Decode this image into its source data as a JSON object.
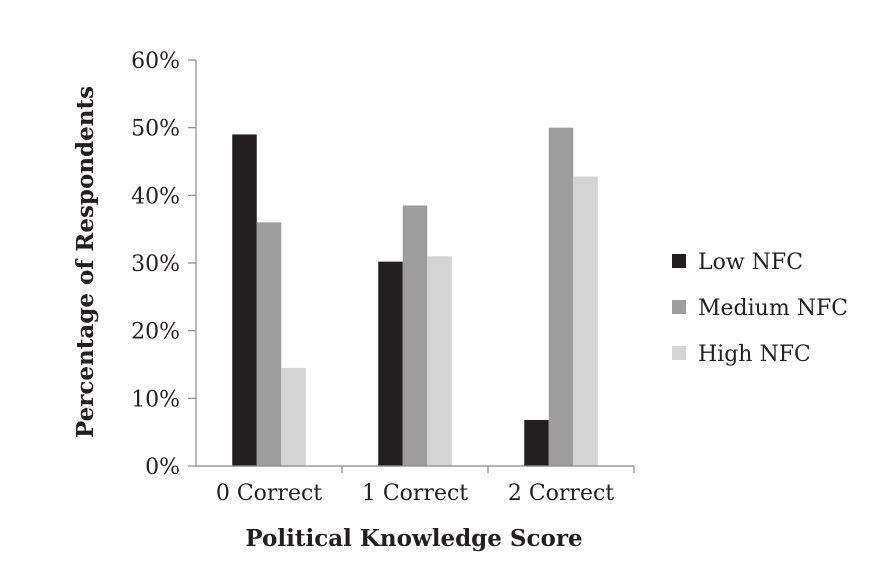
{
  "chart_data": {
    "type": "bar",
    "title": "",
    "xlabel": "Political Knowledge Score",
    "ylabel": "Percentage of Respondents",
    "categories": [
      "0 Correct",
      "1 Correct",
      "2 Correct"
    ],
    "series": [
      {
        "name": "Low NFC",
        "color": "#231f20",
        "values": [
          49,
          30.2,
          6.8
        ]
      },
      {
        "name": "Medium NFC",
        "color": "#9d9d9d",
        "values": [
          36,
          38.5,
          50
        ]
      },
      {
        "name": "High NFC",
        "color": "#d4d4d4",
        "values": [
          14.5,
          31,
          42.8
        ]
      }
    ],
    "ylim": [
      0,
      60
    ],
    "yticks": [
      0,
      10,
      20,
      30,
      40,
      50,
      60
    ],
    "ytick_labels": [
      "0%",
      "10%",
      "20%",
      "30%",
      "40%",
      "50%",
      "60%"
    ],
    "grid": false,
    "legend_position": "right"
  }
}
